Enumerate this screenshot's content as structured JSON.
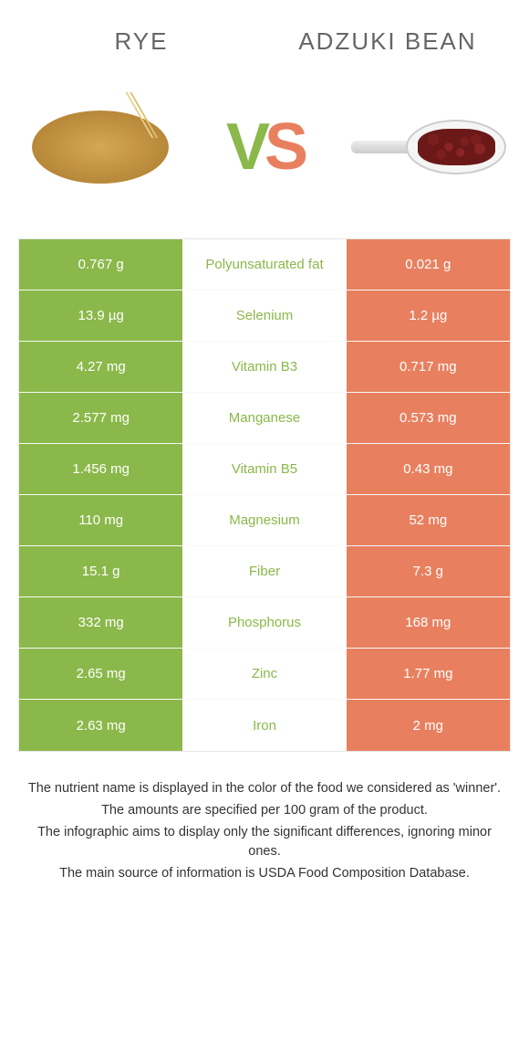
{
  "header": {
    "left_title": "Rye",
    "right_title": "Adzuki bean"
  },
  "vs": {
    "v": "V",
    "s": "S"
  },
  "colors": {
    "green": "#8bb84a",
    "orange": "#e8805f",
    "row_border": "#f8f8f8",
    "table_border": "#e6e6e6",
    "title_text": "#666666",
    "footer_text": "#333333",
    "background": "#ffffff"
  },
  "table": {
    "rows": [
      {
        "left": "0.767 g",
        "nutrient": "Polyunsaturated fat",
        "right": "0.021 g",
        "winner": "green"
      },
      {
        "left": "13.9 µg",
        "nutrient": "Selenium",
        "right": "1.2 µg",
        "winner": "green"
      },
      {
        "left": "4.27 mg",
        "nutrient": "Vitamin B3",
        "right": "0.717 mg",
        "winner": "green"
      },
      {
        "left": "2.577 mg",
        "nutrient": "Manganese",
        "right": "0.573 mg",
        "winner": "green"
      },
      {
        "left": "1.456 mg",
        "nutrient": "Vitamin B5",
        "right": "0.43 mg",
        "winner": "green"
      },
      {
        "left": "110 mg",
        "nutrient": "Magnesium",
        "right": "52 mg",
        "winner": "green"
      },
      {
        "left": "15.1 g",
        "nutrient": "Fiber",
        "right": "7.3 g",
        "winner": "green"
      },
      {
        "left": "332 mg",
        "nutrient": "Phosphorus",
        "right": "168 mg",
        "winner": "green"
      },
      {
        "left": "2.65 mg",
        "nutrient": "Zinc",
        "right": "1.77 mg",
        "winner": "green"
      },
      {
        "left": "2.63 mg",
        "nutrient": "Iron",
        "right": "2 mg",
        "winner": "green"
      }
    ]
  },
  "footer": {
    "lines": [
      "The nutrient name is displayed in the color of the food we considered as 'winner'.",
      "The amounts are specified per 100 gram of the product.",
      "The infographic aims to display only the significant differences, ignoring minor ones.",
      "The main source of information is USDA Food Composition Database."
    ]
  }
}
